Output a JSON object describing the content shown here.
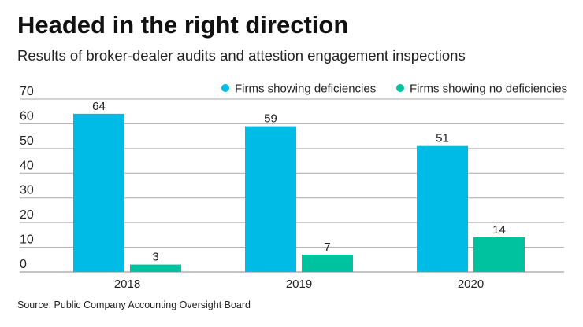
{
  "title": "Headed in the right direction",
  "subtitle": "Results of broker-dealer audits and attestion engagement inspections",
  "source": "Source: Public Company Accounting Oversight Board",
  "chart_data": {
    "type": "bar",
    "categories": [
      "2018",
      "2019",
      "2020"
    ],
    "series": [
      {
        "name": "Firms showing deficiencies",
        "values": [
          64,
          59,
          51
        ],
        "color": "#00bbe6"
      },
      {
        "name": "Firms showing no deficiencies",
        "values": [
          3,
          7,
          14
        ],
        "color": "#00c29e"
      }
    ],
    "ylim": [
      0,
      70
    ],
    "yticks": [
      0,
      10,
      20,
      30,
      40,
      50,
      60,
      70
    ],
    "grid": true,
    "legend": "top-right",
    "data_labels": true
  }
}
